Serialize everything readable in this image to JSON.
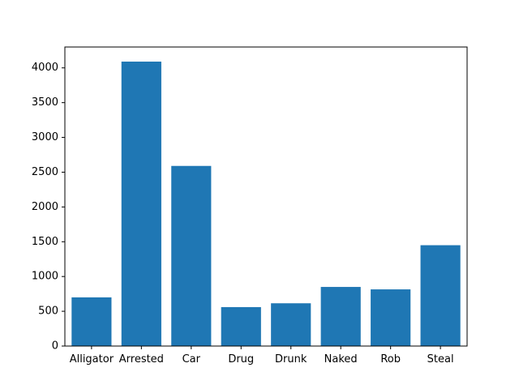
{
  "chart_data": {
    "type": "bar",
    "title": "",
    "xlabel": "",
    "ylabel": "",
    "categories": [
      "Alligator",
      "Arrested",
      "Car",
      "Drug",
      "Drunk",
      "Naked",
      "Rob",
      "Steal"
    ],
    "values": [
      700,
      4090,
      2590,
      560,
      615,
      850,
      815,
      1450
    ],
    "ylim": [
      0,
      4300
    ],
    "yticks": [
      0,
      500,
      1000,
      1500,
      2000,
      2500,
      3000,
      3500,
      4000
    ],
    "bar_color": "#1f77b4",
    "grid": false,
    "legend": "none"
  }
}
